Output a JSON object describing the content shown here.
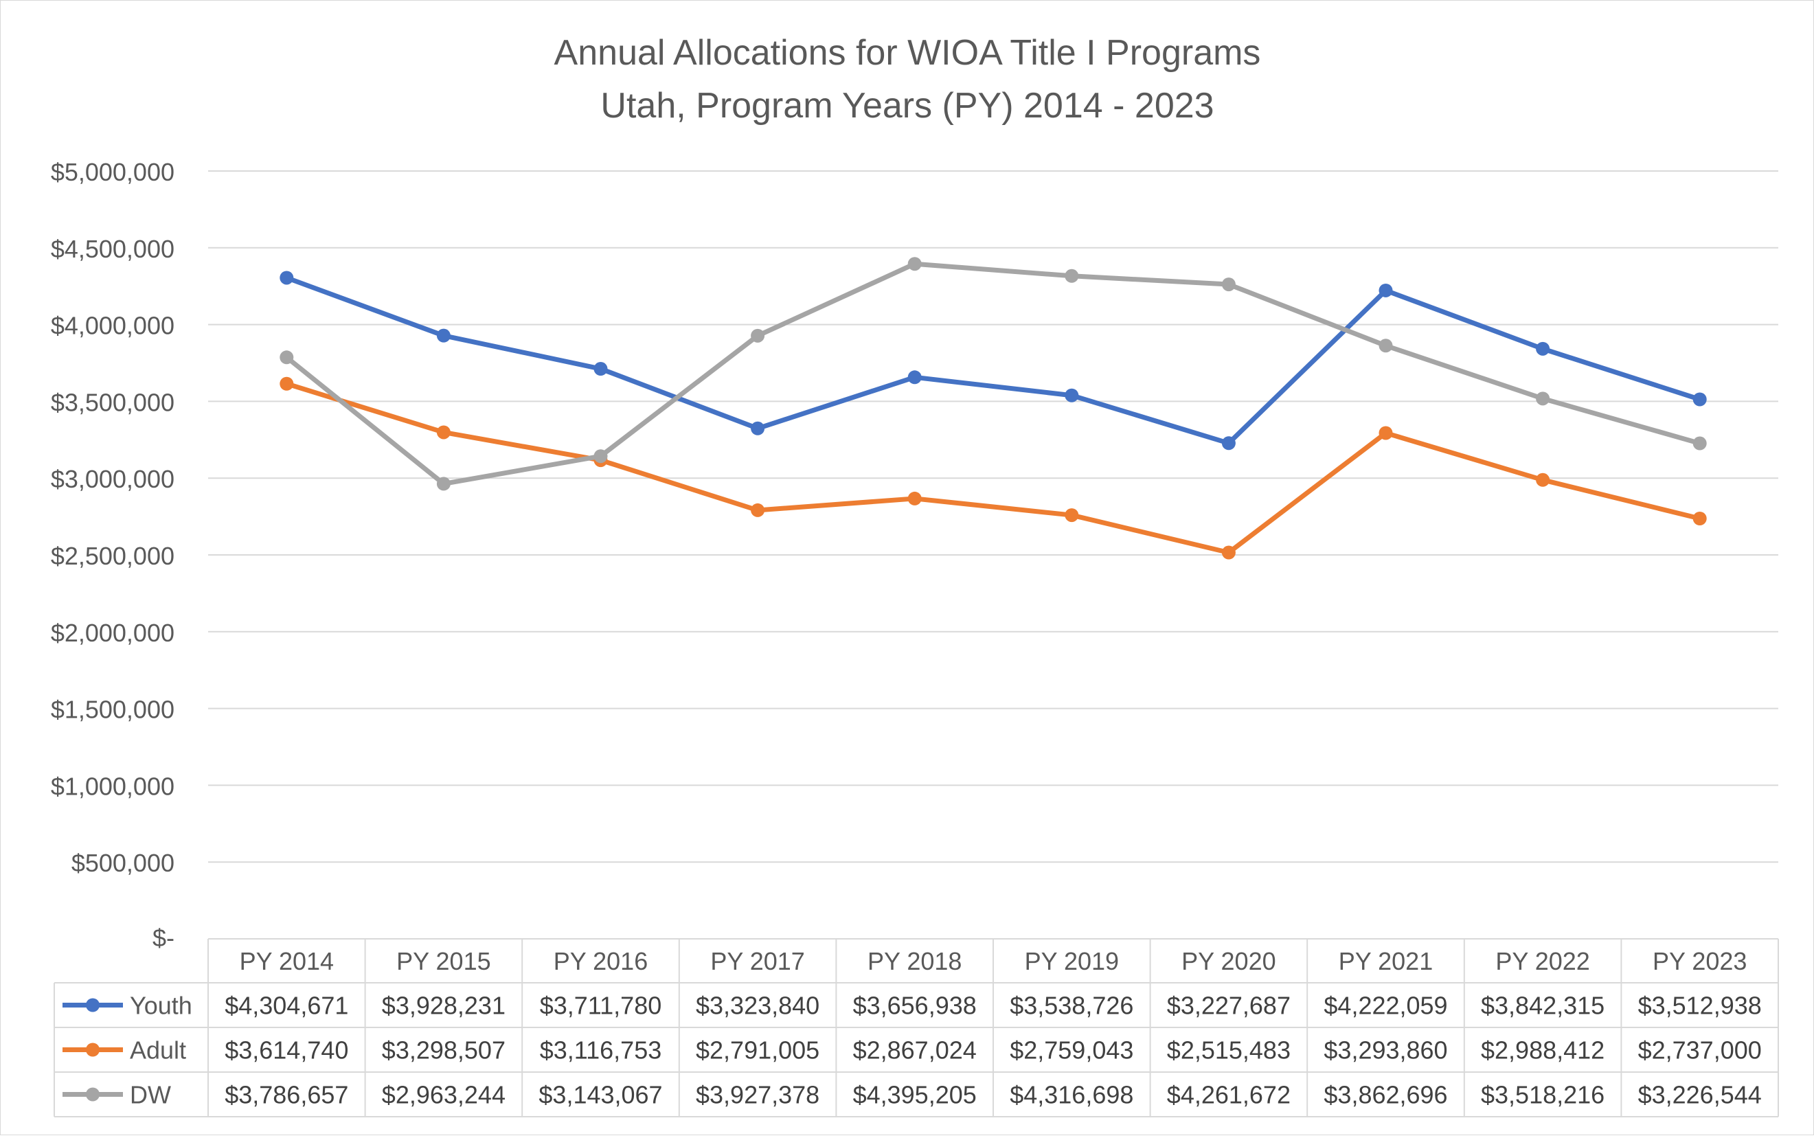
{
  "chart_data": {
    "type": "line",
    "title": "Annual Allocations for WIOA Title I Programs",
    "subtitle": "Utah, Program Years (PY) 2014 - 2023",
    "categories": [
      "PY 2014",
      "PY 2015",
      "PY 2016",
      "PY 2017",
      "PY 2018",
      "PY 2019",
      "PY 2020",
      "PY 2021",
      "PY 2022",
      "PY 2023"
    ],
    "ylim": [
      0,
      5000000
    ],
    "y_ticks": [
      0,
      500000,
      1000000,
      1500000,
      2000000,
      2500000,
      3000000,
      3500000,
      4000000,
      4500000,
      5000000
    ],
    "y_tick_labels": [
      "$-",
      "$500,000",
      "$1,000,000",
      "$1,500,000",
      "$2,000,000",
      "$2,500,000",
      "$3,000,000",
      "$3,500,000",
      "$4,000,000",
      "$4,500,000",
      "$5,000,000"
    ],
    "grid": true,
    "legend": "data-table",
    "series": [
      {
        "name": "Youth",
        "color": "#4472c4",
        "values": [
          4304671,
          3928231,
          3711780,
          3323840,
          3656938,
          3538726,
          3227687,
          4222059,
          3842315,
          3512938
        ],
        "labels": [
          "$4,304,671",
          "$3,928,231",
          "$3,711,780",
          "$3,323,840",
          "$3,656,938",
          "$3,538,726",
          "$3,227,687",
          "$4,222,059",
          "$3,842,315",
          "$3,512,938"
        ]
      },
      {
        "name": "Adult",
        "color": "#ed7d31",
        "values": [
          3614740,
          3298507,
          3116753,
          2791005,
          2867024,
          2759043,
          2515483,
          3293860,
          2988412,
          2737000
        ],
        "labels": [
          "$3,614,740",
          "$3,298,507",
          "$3,116,753",
          "$2,791,005",
          "$2,867,024",
          "$2,759,043",
          "$2,515,483",
          "$3,293,860",
          "$2,988,412",
          "$2,737,000"
        ]
      },
      {
        "name": "DW",
        "color": "#a5a5a5",
        "values": [
          3786657,
          2963244,
          3143067,
          3927378,
          4395205,
          4316698,
          4261672,
          3862696,
          3518216,
          3226544
        ],
        "labels": [
          "$3,786,657",
          "$2,963,244",
          "$3,143,067",
          "$3,927,378",
          "$4,395,205",
          "$4,316,698",
          "$4,261,672",
          "$3,862,696",
          "$3,518,216",
          "$3,226,544"
        ]
      }
    ]
  }
}
